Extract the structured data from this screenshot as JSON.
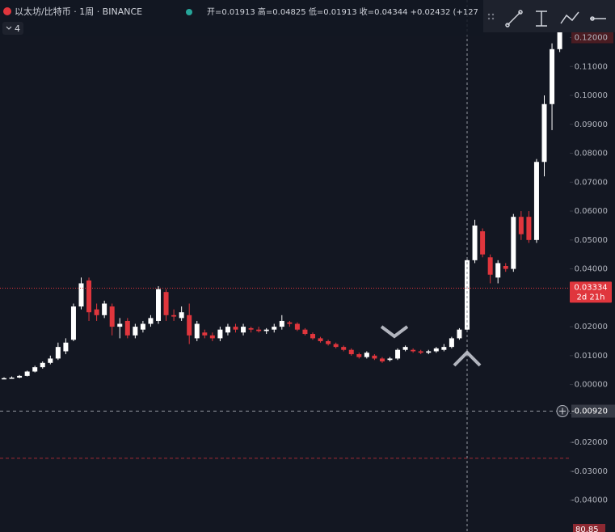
{
  "header": {
    "symbol": "以太坊/比特币 · 1周 · BINANCE",
    "ohlc": "开=0.01913 高=0.04825 低=0.01913 收=0.04344 +0.02432 (+127",
    "indicators": "4"
  },
  "chart_data": {
    "type": "candlestick",
    "up_color": "#ffffff",
    "down_color": "#e0363d",
    "open": [
      0.002,
      0.0022,
      0.0024,
      0.003,
      0.0045,
      0.006,
      0.0075,
      0.009,
      0.0115,
      0.0155,
      0.027,
      0.036,
      0.026,
      0.024,
      0.027,
      0.02,
      0.022,
      0.017,
      0.019,
      0.021,
      0.022,
      0.032,
      0.024,
      0.023,
      0.024,
      0.016,
      0.018,
      0.017,
      0.016,
      0.018,
      0.02,
      0.018,
      0.0195,
      0.019,
      0.0185,
      0.019,
      0.02,
      0.0215,
      0.021,
      0.019,
      0.0175,
      0.016,
      0.015,
      0.014,
      0.013,
      0.012,
      0.0105,
      0.0095,
      0.01,
      0.009,
      0.0085,
      0.009,
      0.012,
      0.012,
      0.0115,
      0.011,
      0.0115,
      0.012,
      0.013,
      0.016,
      0.019,
      0.043,
      0.053,
      0.044,
      0.037,
      0.041,
      0.04,
      0.058,
      0.058,
      0.05,
      0.077,
      0.097,
      0.116
    ],
    "high": [
      0.0025,
      0.0028,
      0.0033,
      0.0048,
      0.0065,
      0.008,
      0.01,
      0.0145,
      0.016,
      0.028,
      0.037,
      0.037,
      0.028,
      0.029,
      0.028,
      0.023,
      0.023,
      0.021,
      0.022,
      0.024,
      0.034,
      0.033,
      0.026,
      0.027,
      0.028,
      0.022,
      0.019,
      0.018,
      0.02,
      0.021,
      0.021,
      0.021,
      0.02,
      0.02,
      0.0195,
      0.021,
      0.024,
      0.022,
      0.0215,
      0.0195,
      0.018,
      0.0165,
      0.0155,
      0.0145,
      0.0135,
      0.0125,
      0.011,
      0.0115,
      0.0105,
      0.0095,
      0.0095,
      0.0125,
      0.0135,
      0.0125,
      0.012,
      0.012,
      0.013,
      0.014,
      0.0165,
      0.0195,
      0.044,
      0.057,
      0.054,
      0.045,
      0.043,
      0.042,
      0.059,
      0.06,
      0.06,
      0.078,
      0.1,
      0.118,
      0.13
    ],
    "low": [
      0.0018,
      0.002,
      0.0022,
      0.0028,
      0.0042,
      0.0055,
      0.007,
      0.0085,
      0.0105,
      0.015,
      0.026,
      0.022,
      0.022,
      0.023,
      0.017,
      0.016,
      0.016,
      0.016,
      0.018,
      0.02,
      0.021,
      0.022,
      0.022,
      0.022,
      0.014,
      0.015,
      0.016,
      0.015,
      0.015,
      0.017,
      0.018,
      0.017,
      0.018,
      0.018,
      0.0175,
      0.018,
      0.019,
      0.02,
      0.0185,
      0.017,
      0.0155,
      0.0145,
      0.0135,
      0.0125,
      0.0115,
      0.01,
      0.009,
      0.009,
      0.0085,
      0.0075,
      0.008,
      0.0085,
      0.0115,
      0.011,
      0.0105,
      0.0105,
      0.011,
      0.0115,
      0.0125,
      0.0155,
      0.0185,
      0.042,
      0.044,
      0.035,
      0.035,
      0.039,
      0.039,
      0.05,
      0.049,
      0.049,
      0.072,
      0.088,
      0.115
    ],
    "close": [
      0.0022,
      0.0024,
      0.003,
      0.0045,
      0.006,
      0.0075,
      0.009,
      0.013,
      0.0145,
      0.027,
      0.035,
      0.025,
      0.024,
      0.028,
      0.02,
      0.021,
      0.017,
      0.02,
      0.021,
      0.023,
      0.033,
      0.024,
      0.0235,
      0.025,
      0.017,
      0.021,
      0.017,
      0.016,
      0.019,
      0.02,
      0.019,
      0.02,
      0.019,
      0.0185,
      0.019,
      0.02,
      0.022,
      0.021,
      0.019,
      0.0175,
      0.016,
      0.015,
      0.014,
      0.013,
      0.012,
      0.0105,
      0.0095,
      0.011,
      0.009,
      0.008,
      0.009,
      0.012,
      0.013,
      0.0115,
      0.011,
      0.0115,
      0.0125,
      0.013,
      0.016,
      0.019,
      0.043,
      0.055,
      0.045,
      0.038,
      0.042,
      0.04,
      0.058,
      0.052,
      0.05,
      0.077,
      0.097,
      0.116,
      0.125
    ],
    "ylim": [
      -0.051,
      0.133
    ],
    "yticks": [
      {
        "value": 0.12,
        "label": "0.12000"
      },
      {
        "value": 0.11,
        "label": "0.11000"
      },
      {
        "value": 0.1,
        "label": "0.10000"
      },
      {
        "value": 0.09,
        "label": "0.09000"
      },
      {
        "value": 0.08,
        "label": "0.08000"
      },
      {
        "value": 0.07,
        "label": "0.07000"
      },
      {
        "value": 0.06,
        "label": "0.06000"
      },
      {
        "value": 0.05,
        "label": "0.05000"
      },
      {
        "value": 0.04,
        "label": "0.04000"
      },
      {
        "value": 0.03,
        "label": "0.03000"
      },
      {
        "value": 0.02,
        "label": "0.02000"
      },
      {
        "value": 0.01,
        "label": "0.01000"
      },
      {
        "value": 0,
        "label": "0.00000"
      },
      {
        "value": -0.01,
        "label": "-0.01000"
      },
      {
        "value": -0.02,
        "label": "-0.02000"
      },
      {
        "value": -0.03,
        "label": "-0.03000"
      },
      {
        "value": -0.04,
        "label": "-0.04000"
      }
    ],
    "price_line": {
      "value": 0.03334,
      "label": "0.03334",
      "countdown": "2d 21h"
    },
    "crosshair": {
      "value": -0.0092,
      "label": "-0.00920"
    },
    "alert_line": -0.0255,
    "bottom_label": "80.85"
  }
}
